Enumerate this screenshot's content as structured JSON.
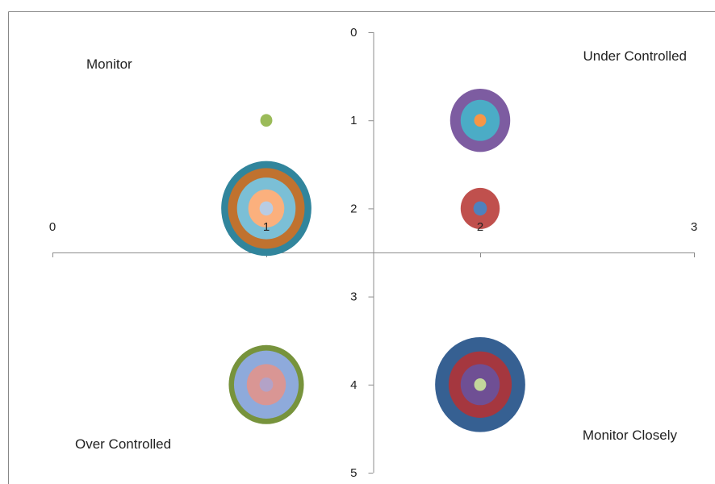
{
  "chart_data": {
    "type": "bubble",
    "xlim": [
      0,
      3
    ],
    "ylim": [
      0,
      5
    ],
    "y_reversed": true,
    "x_axis_crosses_y_at": 2.5,
    "y_axis_crosses_x_at": 1.5,
    "x_ticks": [
      "0",
      "1",
      "2",
      "3"
    ],
    "y_ticks": [
      "0",
      "1",
      "2",
      "3",
      "4",
      "5"
    ],
    "grid": false,
    "legend": "none",
    "quadrant_labels": {
      "top_left": "Monitor",
      "top_right": "Under Controlled",
      "bottom_left": "Over Controlled",
      "bottom_right": "Monitor Closely"
    },
    "bubbles": [
      {
        "x": 1,
        "y": 1,
        "size": 0.8,
        "color": "#9bbb59"
      },
      {
        "x": 1,
        "y": 2,
        "size": 6.0,
        "color": "#31859c"
      },
      {
        "x": 1,
        "y": 2,
        "size": 5.1,
        "color": "#c0722f"
      },
      {
        "x": 1,
        "y": 2,
        "size": 3.9,
        "color": "#7bbfd6"
      },
      {
        "x": 1,
        "y": 2,
        "size": 2.4,
        "color": "#fbb07d"
      },
      {
        "x": 1,
        "y": 2,
        "size": 0.9,
        "color": "#b8cce4"
      },
      {
        "x": 2,
        "y": 1,
        "size": 4.0,
        "color": "#7d5ca1"
      },
      {
        "x": 2,
        "y": 1,
        "size": 2.6,
        "color": "#4bacc6"
      },
      {
        "x": 2,
        "y": 1,
        "size": 0.8,
        "color": "#f79646"
      },
      {
        "x": 2,
        "y": 2,
        "size": 2.6,
        "color": "#c0504d"
      },
      {
        "x": 2,
        "y": 2,
        "size": 0.9,
        "color": "#4f81bd"
      },
      {
        "x": 1,
        "y": 4,
        "size": 5.0,
        "color": "#77933c"
      },
      {
        "x": 1,
        "y": 4,
        "size": 4.3,
        "color": "#8eaadb"
      },
      {
        "x": 1,
        "y": 4,
        "size": 2.6,
        "color": "#d99694"
      },
      {
        "x": 1,
        "y": 4,
        "size": 0.9,
        "color": "#b3a2c7"
      },
      {
        "x": 2,
        "y": 4,
        "size": 6.0,
        "color": "#366092"
      },
      {
        "x": 2,
        "y": 4,
        "size": 4.2,
        "color": "#a5373f"
      },
      {
        "x": 2,
        "y": 4,
        "size": 2.6,
        "color": "#6f4f94"
      },
      {
        "x": 2,
        "y": 4,
        "size": 0.8,
        "color": "#c3d69b"
      }
    ]
  }
}
